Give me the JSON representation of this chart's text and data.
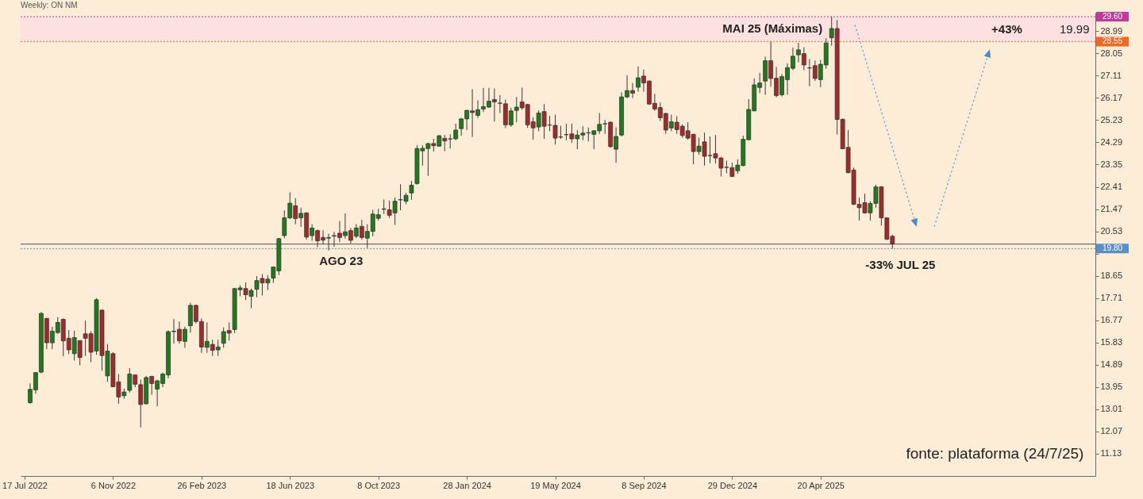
{
  "chart_data": {
    "type": "candlestick",
    "title": "Weekly: ON NM",
    "x": [
      "2022-07-24",
      "2022-07-31",
      "2022-08-07",
      "2022-08-14",
      "2022-08-21",
      "2022-08-28",
      "2022-09-04",
      "2022-09-11",
      "2022-09-18",
      "2022-09-25",
      "2022-10-02",
      "2022-10-09",
      "2022-10-16",
      "2022-10-23",
      "2022-10-30",
      "2022-11-06",
      "2022-11-13",
      "2022-11-20",
      "2022-11-27",
      "2022-12-04",
      "2022-12-11",
      "2022-12-18",
      "2022-12-25",
      "2023-01-01",
      "2023-01-08",
      "2023-01-15",
      "2023-01-22",
      "2023-01-29",
      "2023-02-05",
      "2023-02-12",
      "2023-02-19",
      "2023-02-26",
      "2023-03-05",
      "2023-03-12",
      "2023-03-19",
      "2023-03-26",
      "2023-04-02",
      "2023-04-09",
      "2023-04-16",
      "2023-04-23",
      "2023-04-30",
      "2023-05-07",
      "2023-05-14",
      "2023-05-21",
      "2023-05-28",
      "2023-06-04",
      "2023-06-11",
      "2023-06-18",
      "2023-06-25",
      "2023-07-02",
      "2023-07-09",
      "2023-07-16",
      "2023-07-23",
      "2023-07-30",
      "2023-08-06",
      "2023-08-13",
      "2023-08-20",
      "2023-08-27",
      "2023-09-03",
      "2023-09-10",
      "2023-09-17",
      "2023-09-24",
      "2023-10-01",
      "2023-10-08",
      "2023-10-15",
      "2023-10-22",
      "2023-10-29",
      "2023-11-05",
      "2023-11-12",
      "2023-11-19",
      "2023-11-26",
      "2023-12-03",
      "2023-12-10",
      "2023-12-17",
      "2023-12-24",
      "2023-12-31",
      "2024-01-07",
      "2024-01-14",
      "2024-01-21",
      "2024-01-28",
      "2024-02-04",
      "2024-02-11",
      "2024-02-18",
      "2024-02-25",
      "2024-03-03",
      "2024-03-10",
      "2024-03-17",
      "2024-03-24",
      "2024-03-31",
      "2024-04-07",
      "2024-04-14",
      "2024-04-21",
      "2024-04-28",
      "2024-05-05",
      "2024-05-12",
      "2024-05-19",
      "2024-05-26",
      "2024-06-02",
      "2024-06-09",
      "2024-06-16",
      "2024-06-23",
      "2024-06-30",
      "2024-07-07",
      "2024-07-14",
      "2024-07-21",
      "2024-07-28",
      "2024-08-04",
      "2024-08-11",
      "2024-08-18",
      "2024-08-25",
      "2024-09-01",
      "2024-09-08",
      "2024-09-15",
      "2024-09-22",
      "2024-09-29",
      "2024-10-06",
      "2024-10-13",
      "2024-10-20",
      "2024-10-27",
      "2024-11-03",
      "2024-11-10",
      "2024-11-17",
      "2024-11-24",
      "2024-12-01",
      "2024-12-08",
      "2024-12-15",
      "2024-12-22",
      "2024-12-29",
      "2025-01-05",
      "2025-01-12",
      "2025-01-19",
      "2025-01-26",
      "2025-02-02",
      "2025-02-09",
      "2025-02-16",
      "2025-02-23",
      "2025-03-02",
      "2025-03-09",
      "2025-03-16",
      "2025-03-23",
      "2025-03-30",
      "2025-04-06",
      "2025-04-13",
      "2025-04-20",
      "2025-04-27",
      "2025-05-04",
      "2025-05-11",
      "2025-05-18",
      "2025-05-25",
      "2025-06-01",
      "2025-06-08",
      "2025-06-15",
      "2025-06-22",
      "2025-06-29",
      "2025-07-06",
      "2025-07-13",
      "2025-07-20"
    ],
    "ohlc": [
      [
        13.29,
        14.1,
        13.24,
        13.85
      ],
      [
        13.83,
        14.58,
        13.67,
        14.56
      ],
      [
        14.58,
        17.12,
        14.53,
        17.06
      ],
      [
        16.85,
        16.87,
        15.55,
        15.82
      ],
      [
        15.82,
        16.5,
        15.55,
        16.31
      ],
      [
        16.25,
        16.9,
        16.2,
        16.68
      ],
      [
        16.81,
        16.85,
        15.25,
        15.9
      ],
      [
        16.01,
        16.36,
        15.34,
        15.52
      ],
      [
        15.36,
        16.33,
        15.07,
        16.04
      ],
      [
        15.91,
        15.93,
        14.87,
        15.2
      ],
      [
        16.2,
        16.76,
        15.26,
        16.01
      ],
      [
        16.2,
        16.31,
        15.0,
        15.42
      ],
      [
        15.47,
        17.71,
        15.32,
        17.64
      ],
      [
        17.2,
        17.22,
        14.64,
        15.28
      ],
      [
        14.42,
        15.77,
        14.17,
        15.47
      ],
      [
        15.36,
        15.42,
        13.94,
        13.96
      ],
      [
        14.17,
        14.5,
        13.24,
        13.53
      ],
      [
        13.58,
        13.88,
        13.45,
        13.74
      ],
      [
        13.81,
        14.75,
        13.72,
        14.5
      ],
      [
        14.46,
        14.48,
        13.94,
        14.07
      ],
      [
        14.05,
        14.26,
        12.24,
        13.21
      ],
      [
        13.24,
        14.42,
        13.21,
        14.35
      ],
      [
        14.4,
        14.42,
        13.62,
        14.1
      ],
      [
        13.86,
        14.26,
        13.13,
        14.21
      ],
      [
        14.1,
        14.56,
        13.94,
        14.5
      ],
      [
        14.46,
        16.34,
        14.32,
        16.29
      ],
      [
        16.29,
        16.82,
        15.79,
        16.31
      ],
      [
        16.39,
        16.72,
        15.79,
        15.9
      ],
      [
        15.88,
        16.5,
        15.61,
        16.39
      ],
      [
        16.54,
        17.51,
        16.25,
        17.4
      ],
      [
        17.4,
        17.44,
        16.63,
        16.72
      ],
      [
        16.72,
        16.85,
        15.39,
        15.64
      ],
      [
        15.63,
        16.68,
        15.39,
        15.88
      ],
      [
        15.75,
        15.95,
        15.26,
        15.5
      ],
      [
        15.52,
        15.95,
        15.26,
        15.64
      ],
      [
        15.8,
        16.47,
        15.61,
        16.29
      ],
      [
        16.34,
        16.68,
        15.91,
        16.23
      ],
      [
        16.38,
        18.14,
        16.23,
        18.11
      ],
      [
        18.06,
        18.25,
        17.78,
        18.14
      ],
      [
        18.11,
        18.37,
        17.63,
        17.85
      ],
      [
        17.78,
        18.11,
        17.28,
        18.03
      ],
      [
        18.08,
        18.64,
        17.74,
        18.45
      ],
      [
        18.54,
        18.73,
        17.82,
        18.35
      ],
      [
        18.35,
        18.68,
        18.05,
        18.51
      ],
      [
        18.55,
        19.05,
        18.35,
        19.02
      ],
      [
        18.86,
        20.25,
        18.68,
        20.22
      ],
      [
        20.35,
        21.42,
        20.24,
        21.1
      ],
      [
        21.1,
        22.18,
        21.05,
        21.72
      ],
      [
        21.61,
        21.94,
        20.83,
        21.07
      ],
      [
        21.1,
        21.53,
        20.72,
        21.29
      ],
      [
        21.31,
        21.33,
        20.18,
        20.29
      ],
      [
        20.35,
        20.83,
        20.13,
        20.67
      ],
      [
        20.56,
        20.61,
        19.86,
        20.13
      ],
      [
        20.27,
        20.58,
        20.0,
        20.16
      ],
      [
        20.24,
        20.43,
        19.72,
        20.27
      ],
      [
        20.33,
        20.51,
        19.88,
        20.35
      ],
      [
        20.45,
        20.97,
        20.08,
        20.27
      ],
      [
        20.35,
        21.29,
        20.22,
        20.51
      ],
      [
        20.56,
        20.67,
        20.02,
        20.15
      ],
      [
        20.32,
        20.83,
        20.24,
        20.67
      ],
      [
        20.74,
        21.01,
        20.18,
        20.27
      ],
      [
        20.24,
        20.83,
        19.83,
        20.53
      ],
      [
        20.53,
        21.44,
        20.32,
        21.26
      ],
      [
        21.08,
        21.48,
        20.99,
        21.23
      ],
      [
        21.46,
        21.87,
        21.26,
        21.48
      ],
      [
        21.44,
        21.83,
        21.1,
        21.21
      ],
      [
        21.31,
        21.96,
        20.8,
        21.8
      ],
      [
        21.86,
        22.52,
        21.42,
        21.87
      ],
      [
        21.8,
        22.15,
        21.67,
        22.05
      ],
      [
        22.15,
        22.66,
        21.87,
        22.48
      ],
      [
        22.55,
        24.17,
        22.5,
        24.03
      ],
      [
        23.93,
        24.17,
        23.31,
        24.04
      ],
      [
        24.03,
        24.27,
        22.87,
        24.24
      ],
      [
        24.24,
        24.44,
        23.9,
        24.15
      ],
      [
        24.13,
        24.6,
        24.11,
        24.57
      ],
      [
        24.46,
        24.6,
        23.92,
        24.35
      ],
      [
        24.43,
        24.63,
        24.03,
        24.44
      ],
      [
        24.44,
        25.08,
        24.38,
        24.81
      ],
      [
        24.87,
        25.32,
        24.57,
        25.28
      ],
      [
        25.28,
        25.67,
        24.81,
        25.64
      ],
      [
        25.62,
        26.54,
        24.52,
        25.55
      ],
      [
        25.43,
        26.07,
        25.32,
        25.67
      ],
      [
        25.7,
        26.59,
        25.57,
        25.8
      ],
      [
        25.78,
        26.59,
        25.75,
        26.03
      ],
      [
        26.1,
        26.57,
        25.17,
        26.0
      ],
      [
        25.94,
        26.29,
        25.53,
        25.95
      ],
      [
        25.92,
        26.1,
        24.89,
        25.03
      ],
      [
        25.03,
        25.75,
        24.95,
        25.62
      ],
      [
        25.64,
        26.21,
        25.14,
        25.78
      ],
      [
        26.0,
        26.61,
        25.67,
        25.75
      ],
      [
        25.89,
        25.92,
        24.9,
        25.03
      ],
      [
        25.16,
        25.35,
        24.4,
        24.9
      ],
      [
        24.94,
        25.64,
        24.76,
        25.53
      ],
      [
        25.59,
        25.91,
        24.44,
        24.97
      ],
      [
        25.03,
        25.41,
        24.76,
        25.02
      ],
      [
        25.01,
        25.46,
        24.2,
        24.47
      ],
      [
        24.51,
        24.99,
        24.44,
        24.52
      ],
      [
        24.61,
        25.08,
        24.38,
        24.62
      ],
      [
        24.65,
        25.08,
        24.27,
        24.44
      ],
      [
        24.44,
        24.81,
        24.0,
        24.6
      ],
      [
        24.6,
        24.97,
        24.38,
        24.68
      ],
      [
        24.69,
        24.92,
        24.33,
        24.7
      ],
      [
        24.63,
        24.81,
        24.0,
        24.78
      ],
      [
        24.78,
        25.53,
        24.65,
        25.05
      ],
      [
        25.07,
        25.24,
        24.65,
        25.08
      ],
      [
        25.14,
        25.16,
        24.06,
        24.11
      ],
      [
        24.0,
        24.92,
        23.43,
        24.54
      ],
      [
        24.6,
        26.41,
        24.54,
        26.21
      ],
      [
        26.21,
        27.13,
        26.16,
        26.48
      ],
      [
        26.48,
        26.8,
        26.16,
        26.37
      ],
      [
        26.62,
        27.5,
        26.43,
        27.02
      ],
      [
        27.09,
        27.37,
        26.43,
        26.8
      ],
      [
        26.88,
        26.91,
        25.87,
        25.91
      ],
      [
        25.94,
        26.34,
        25.62,
        25.7
      ],
      [
        25.76,
        25.97,
        25.19,
        25.33
      ],
      [
        25.51,
        25.54,
        24.65,
        24.81
      ],
      [
        24.9,
        25.46,
        24.76,
        25.16
      ],
      [
        25.14,
        25.4,
        24.65,
        24.83
      ],
      [
        24.97,
        25.05,
        24.49,
        24.58
      ],
      [
        24.78,
        25.14,
        24.4,
        24.47
      ],
      [
        24.63,
        24.65,
        23.36,
        23.9
      ],
      [
        23.9,
        24.49,
        23.76,
        24.13
      ],
      [
        24.31,
        24.7,
        23.31,
        23.7
      ],
      [
        23.74,
        24.54,
        23.41,
        23.73
      ],
      [
        23.81,
        24.6,
        23.39,
        23.63
      ],
      [
        23.63,
        23.68,
        22.85,
        23.2
      ],
      [
        23.24,
        23.52,
        22.98,
        23.23
      ],
      [
        23.22,
        23.43,
        22.82,
        22.85
      ],
      [
        23.09,
        23.57,
        22.96,
        23.33
      ],
      [
        23.31,
        24.57,
        23.28,
        24.42
      ],
      [
        24.4,
        26.12,
        24.38,
        25.68
      ],
      [
        25.62,
        26.99,
        25.6,
        26.72
      ],
      [
        26.61,
        27.23,
        26.37,
        26.8
      ],
      [
        26.88,
        27.91,
        26.3,
        27.74
      ],
      [
        27.74,
        28.55,
        26.64,
        26.99
      ],
      [
        27.0,
        27.48,
        26.19,
        26.27
      ],
      [
        26.3,
        27.18,
        26.23,
        27.07
      ],
      [
        26.94,
        27.63,
        26.3,
        27.45
      ],
      [
        27.42,
        28.29,
        27.34,
        27.93
      ],
      [
        27.99,
        28.49,
        27.67,
        28.2
      ],
      [
        28.04,
        28.31,
        27.34,
        27.56
      ],
      [
        27.44,
        27.81,
        26.66,
        27.43
      ],
      [
        27.53,
        27.75,
        26.88,
        26.99
      ],
      [
        26.94,
        27.77,
        26.62,
        27.59
      ],
      [
        27.56,
        28.69,
        27.4,
        28.49
      ],
      [
        28.71,
        29.6,
        28.37,
        29.1
      ],
      [
        29.1,
        29.46,
        24.62,
        25.26
      ],
      [
        25.26,
        25.3,
        24.0,
        24.02
      ],
      [
        24.08,
        24.81,
        22.98,
        23.01
      ],
      [
        23.12,
        23.22,
        21.64,
        21.67
      ],
      [
        21.67,
        21.96,
        20.99,
        21.53
      ],
      [
        21.74,
        22.12,
        21.28,
        21.31
      ],
      [
        21.31,
        21.8,
        20.99,
        21.71
      ],
      [
        21.71,
        22.5,
        21.53,
        22.41
      ],
      [
        22.41,
        22.44,
        20.77,
        21.1
      ],
      [
        21.1,
        21.12,
        20.16,
        20.2
      ],
      [
        20.32,
        20.38,
        19.8,
        19.99
      ]
    ],
    "colors": [
      "#1e7b1e",
      "#1e7b1e",
      "#1e7b1e",
      "#a32a2a",
      "#1e7b1e",
      "#1e7b1e",
      "#a32a2a",
      "#a32a2a",
      "#1e7b1e",
      "#a32a2a",
      "#a32a2a",
      "#a32a2a",
      "#1e7b1e",
      "#a32a2a",
      "#1e7b1e",
      "#a32a2a",
      "#a32a2a",
      "#1e7b1e",
      "#1e7b1e",
      "#a32a2a",
      "#a32a2a",
      "#1e7b1e",
      "#a32a2a",
      "#1e7b1e",
      "#1e7b1e",
      "#1e7b1e",
      "#1e7b1e",
      "#a32a2a",
      "#1e7b1e",
      "#1e7b1e",
      "#a32a2a",
      "#a32a2a",
      "#1e7b1e",
      "#a32a2a",
      "#1e7b1e",
      "#1e7b1e",
      "#a32a2a",
      "#1e7b1e",
      "#1e7b1e",
      "#a32a2a",
      "#1e7b1e",
      "#1e7b1e",
      "#a32a2a",
      "#1e7b1e",
      "#1e7b1e",
      "#1e7b1e",
      "#1e7b1e",
      "#1e7b1e",
      "#a32a2a",
      "#1e7b1e",
      "#a32a2a",
      "#1e7b1e",
      "#a32a2a",
      "#a32a2a",
      "#1e7b1e",
      "#1e7b1e",
      "#a32a2a",
      "#1e7b1e",
      "#a32a2a",
      "#1e7b1e",
      "#a32a2a",
      "#1e7b1e",
      "#1e7b1e",
      "#1e7b1e",
      "#1e7b1e",
      "#a32a2a",
      "#1e7b1e",
      "#1e7b1e",
      "#1e7b1e",
      "#1e7b1e",
      "#1e7b1e",
      "#1e7b1e",
      "#1e7b1e",
      "#a32a2a",
      "#1e7b1e",
      "#a32a2a",
      "#1e7b1e",
      "#1e7b1e",
      "#1e7b1e",
      "#1e7b1e",
      "#a32a2a",
      "#1e7b1e",
      "#1e7b1e",
      "#1e7b1e",
      "#a32a2a",
      "#1e7b1e",
      "#a32a2a",
      "#1e7b1e",
      "#1e7b1e",
      "#a32a2a",
      "#a32a2a",
      "#a32a2a",
      "#1e7b1e",
      "#a32a2a",
      "#a32a2a",
      "#a32a2a",
      "#1e7b1e",
      "#1e7b1e",
      "#a32a2a",
      "#1e7b1e",
      "#1e7b1e",
      "#1e7b1e",
      "#1e7b1e",
      "#1e7b1e",
      "#1e7b1e",
      "#a32a2a",
      "#1e7b1e",
      "#1e7b1e",
      "#1e7b1e",
      "#a32a2a",
      "#1e7b1e",
      "#a32a2a",
      "#a32a2a",
      "#a32a2a",
      "#a32a2a",
      "#a32a2a",
      "#1e7b1e",
      "#a32a2a",
      "#a32a2a",
      "#a32a2a",
      "#a32a2a",
      "#1e7b1e",
      "#a32a2a",
      "#a32a2a",
      "#a32a2a",
      "#a32a2a",
      "#a32a2a",
      "#a32a2a",
      "#1e7b1e",
      "#1e7b1e",
      "#1e7b1e",
      "#1e7b1e",
      "#1e7b1e",
      "#1e7b1e",
      "#a32a2a",
      "#a32a2a",
      "#1e7b1e",
      "#1e7b1e",
      "#1e7b1e",
      "#1e7b1e",
      "#a32a2a",
      "#a32a2a",
      "#a32a2a",
      "#1e7b1e",
      "#1e7b1e",
      "#1e7b1e",
      "#a32a2a",
      "#a32a2a",
      "#a32a2a",
      "#a32a2a",
      "#a32a2a",
      "#a32a2a",
      "#1e7b1e",
      "#1e7b1e",
      "#a32a2a",
      "#a32a2a",
      "#a32a2a"
    ],
    "xlim": [
      "2022-07-17",
      "2026-03-29"
    ],
    "xticks": [
      {
        "value": "2022-07-17",
        "label": "17 Jul 2022"
      },
      {
        "value": "2022-11-06",
        "label": "6 Nov 2022"
      },
      {
        "value": "2023-02-26",
        "label": "26 Feb 2023"
      },
      {
        "value": "2023-06-18",
        "label": "18 Jun 2023"
      },
      {
        "value": "2023-10-08",
        "label": "8 Oct 2023"
      },
      {
        "value": "2024-01-28",
        "label": "28 Jan 2024"
      },
      {
        "value": "2024-05-19",
        "label": "19 May 2024"
      },
      {
        "value": "2024-09-08",
        "label": "8 Sep 2024"
      },
      {
        "value": "2024-12-29",
        "label": "29 Dec 2024"
      },
      {
        "value": "2025-04-20",
        "label": "20 Apr 2025"
      }
    ],
    "ylim": [
      10.19,
      29.77
    ],
    "yticks": [
      28.99,
      28.05,
      27.11,
      26.17,
      25.23,
      24.29,
      23.35,
      22.41,
      21.47,
      20.53,
      {
        "value": 19.59,
        "label": null
      },
      18.65,
      17.71,
      16.77,
      15.83,
      14.89,
      13.95,
      13.01,
      12.07,
      11.13
    ],
    "ref_lines": [
      {
        "axis": "y",
        "value": 29.6,
        "label": "29.60",
        "color": "#c2389b",
        "line_style": "dotted"
      },
      {
        "axis": "y",
        "value": 28.55,
        "label": "28.55",
        "color": "#f26a21",
        "line_style": "dotted"
      },
      {
        "axis": "y",
        "value": 19.99,
        "color": "#505050",
        "line_style": "solid"
      },
      {
        "axis": "y",
        "value": 19.8,
        "label": "19.80",
        "color": "#5a8fc8",
        "line_style": "dotted"
      }
    ],
    "bands": [
      {
        "axis": "y",
        "from": 28.55,
        "to": 29.6,
        "color": "#fde0e2"
      }
    ],
    "annotations": [
      "MAI 25 (Máximas)",
      "AGO 23",
      "-33% JUL 25",
      "+43%",
      "19.99",
      "fonte: plataforma (24/7/25)"
    ]
  }
}
